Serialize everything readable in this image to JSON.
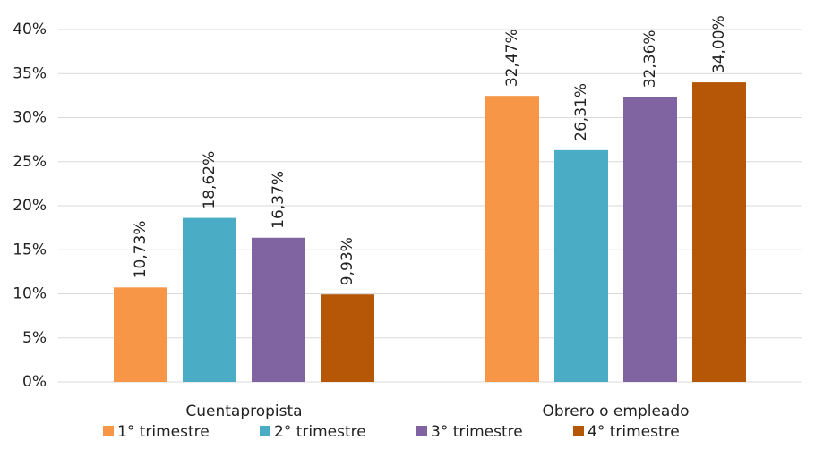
{
  "chart_data": {
    "type": "bar",
    "categories": [
      "Cuentapropista",
      "Obrero o empleado"
    ],
    "series": [
      {
        "name": "1° trimestre",
        "color": "#f79646",
        "values": [
          10.73,
          32.47
        ],
        "value_labels": [
          "10,73%",
          "32,47%"
        ]
      },
      {
        "name": "2° trimestre",
        "color": "#4bacc6",
        "values": [
          18.62,
          26.31
        ],
        "value_labels": [
          "18,62%",
          "26,31%"
        ]
      },
      {
        "name": "3° trimestre",
        "color": "#8064a2",
        "values": [
          16.37,
          32.36
        ],
        "value_labels": [
          "16,37%",
          "32,36%"
        ]
      },
      {
        "name": "4° trimestre",
        "color": "#b65708",
        "values": [
          9.93,
          34.0
        ],
        "value_labels": [
          "9,93%",
          "34,00%"
        ]
      }
    ],
    "ylim": [
      0,
      40
    ],
    "yticks": [
      {
        "value": 0,
        "label": "0%"
      },
      {
        "value": 5,
        "label": "5%"
      },
      {
        "value": 10,
        "label": "10%"
      },
      {
        "value": 15,
        "label": "15%"
      },
      {
        "value": 20,
        "label": "20%"
      },
      {
        "value": 25,
        "label": "25%"
      },
      {
        "value": 30,
        "label": "30%"
      },
      {
        "value": 35,
        "label": "35%"
      },
      {
        "value": 40,
        "label": "40%"
      }
    ],
    "grid": true,
    "legend": "bottom"
  }
}
